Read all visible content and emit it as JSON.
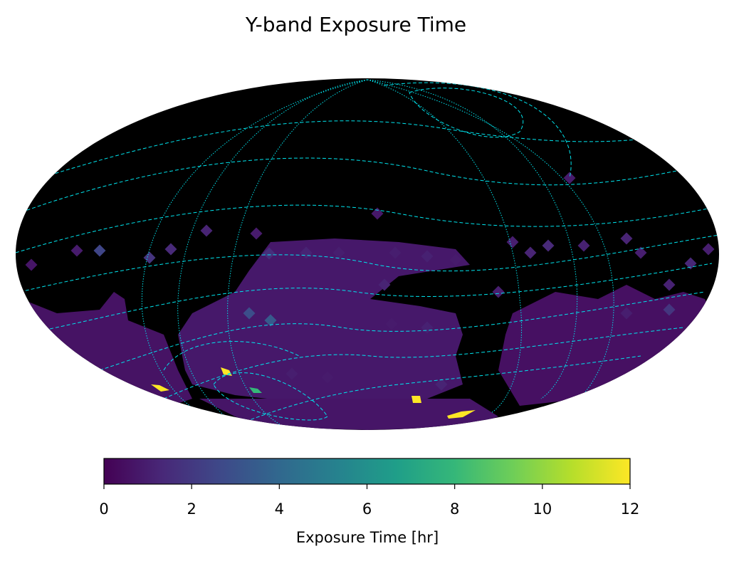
{
  "chart_data": {
    "type": "heatmap",
    "projection": "mollweide",
    "title": "Y-band Exposure Time",
    "colorbar": {
      "label": "Exposure Time [hr]",
      "colormap": "viridis",
      "range": [
        0,
        12
      ],
      "ticks": [
        0,
        2,
        4,
        6,
        8,
        10,
        12
      ],
      "tick_labels": [
        "0",
        "2",
        "4",
        "6",
        "8",
        "10",
        "12"
      ],
      "orientation": "horizontal",
      "placement": "bottom"
    },
    "background": "#000000",
    "overlays": [
      {
        "style": "dashed",
        "color": "#00e5ee",
        "description_kind": "ecliptic coordinate grid"
      },
      {
        "style": "dotted",
        "color": "#00e5ee",
        "description_kind": "meridian grid"
      }
    ],
    "colors": {
      "viridis": [
        "#440154",
        "#482878",
        "#3e4989",
        "#31688e",
        "#26828e",
        "#1f9e89",
        "#35b779",
        "#6ece58",
        "#b5de2b",
        "#fde725"
      ],
      "overlay": "#00e5ee",
      "map_fill": "#000000",
      "coverage_base": "#46085c"
    }
  }
}
